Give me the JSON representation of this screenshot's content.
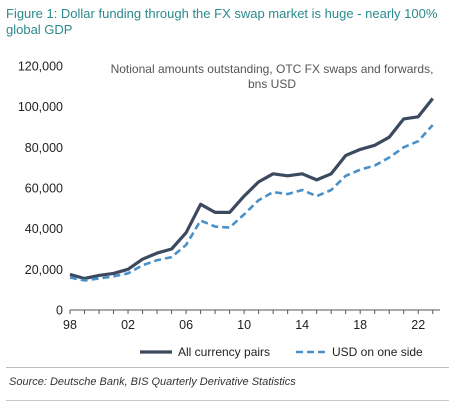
{
  "figure": {
    "title": "Figure 1: Dollar funding through the FX swap market is huge - nearly 100% global GDP",
    "source": "Source: Deutsche Bank, BIS Quarterly Derivative Statistics"
  },
  "chart_data": {
    "type": "line",
    "title": "Notional amounts outstanding, OTC FX swaps and forwards, bns USD",
    "title_lines": [
      "Notional amounts outstanding, OTC FX swaps and forwards,",
      "bns USD"
    ],
    "xlabel": "",
    "ylabel": "",
    "xlim": [
      1998,
      2023.5
    ],
    "ylim": [
      0,
      120000
    ],
    "x_ticks": [
      1998,
      2002,
      2006,
      2010,
      2014,
      2018,
      2022
    ],
    "x_tick_labels": [
      "98",
      "02",
      "06",
      "10",
      "14",
      "18",
      "22"
    ],
    "y_ticks": [
      0,
      20000,
      40000,
      60000,
      80000,
      100000,
      120000
    ],
    "y_tick_labels": [
      "0",
      "20,000",
      "40,000",
      "60,000",
      "80,000",
      "100,000",
      "120,000"
    ],
    "grid": false,
    "legend_position": "bottom",
    "x": [
      1998,
      1999,
      2000,
      2001,
      2002,
      2003,
      2004,
      2005,
      2006,
      2007,
      2008,
      2009,
      2010,
      2011,
      2012,
      2013,
      2014,
      2015,
      2016,
      2017,
      2018,
      2019,
      2020,
      2021,
      2022,
      2023
    ],
    "series": [
      {
        "name": "All currency pairs",
        "color": "#3b4a5e",
        "style": "solid",
        "values": [
          17500,
          15500,
          17000,
          18000,
          20000,
          25000,
          28000,
          30000,
          38000,
          52000,
          48000,
          48000,
          56000,
          63000,
          67000,
          66000,
          67000,
          64000,
          67000,
          76000,
          79000,
          81000,
          85000,
          94000,
          95000,
          104000
        ]
      },
      {
        "name": "USD on one side",
        "color": "#4a90c8",
        "style": "dashed",
        "values": [
          16000,
          14500,
          15500,
          16500,
          18000,
          22000,
          24500,
          26000,
          32000,
          44000,
          41000,
          40500,
          47000,
          54000,
          58000,
          57000,
          59000,
          56000,
          59000,
          66000,
          69000,
          71000,
          75000,
          80000,
          83000,
          91000
        ]
      }
    ]
  }
}
